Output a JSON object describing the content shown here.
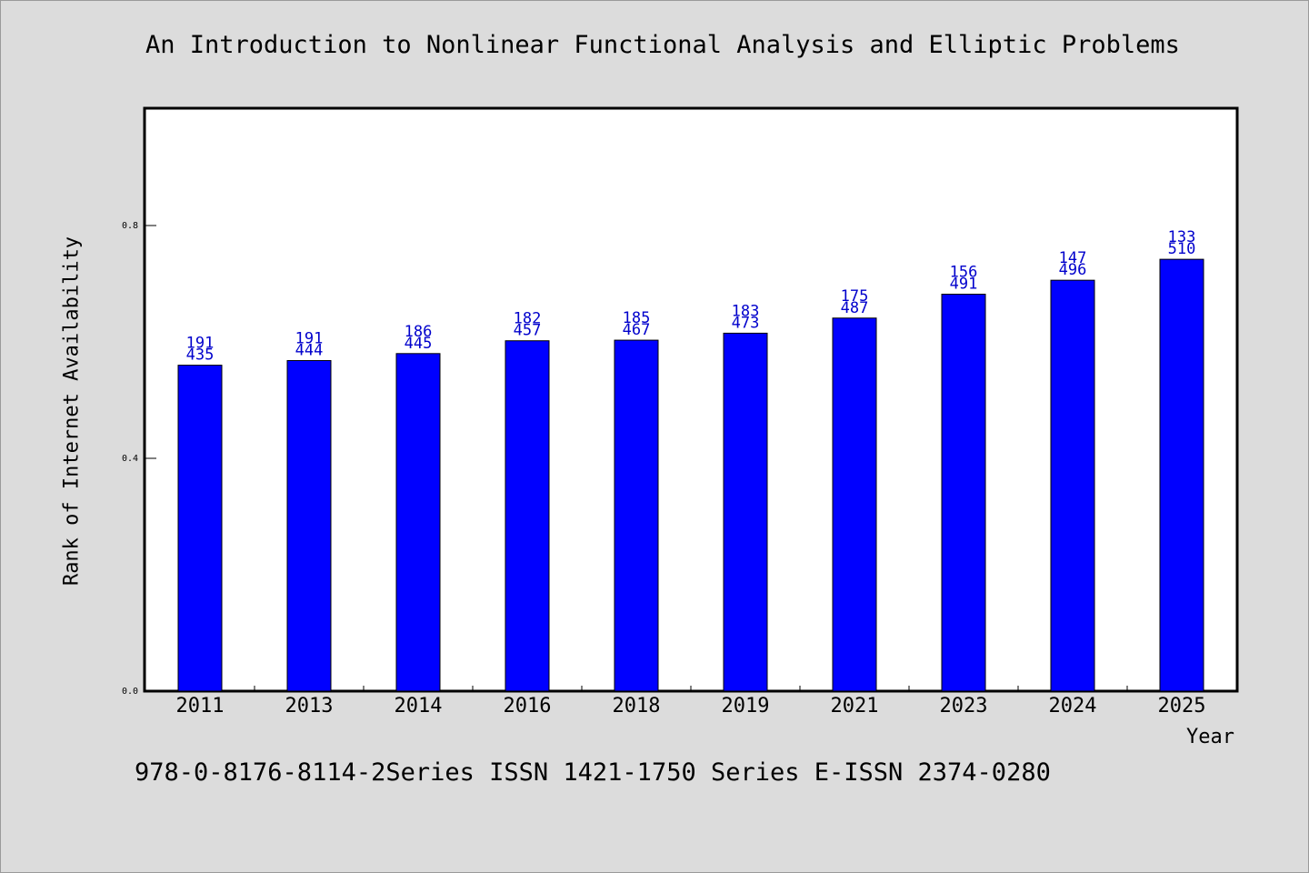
{
  "chart_data": {
    "type": "bar",
    "title": "An Introduction to Nonlinear Functional Analysis and Elliptic Problems",
    "xlabel": "Year",
    "ylabel": "Rank of Internet Availability",
    "categories": [
      "2011",
      "2013",
      "2014",
      "2016",
      "2018",
      "2019",
      "2021",
      "2023",
      "2024",
      "2025"
    ],
    "values": [
      0.56,
      0.568,
      0.58,
      0.602,
      0.603,
      0.615,
      0.641,
      0.682,
      0.706,
      0.742
    ],
    "data_labels": [
      [
        "191",
        "435"
      ],
      [
        "191",
        "444"
      ],
      [
        "186",
        "445"
      ],
      [
        "182",
        "457"
      ],
      [
        "185",
        "467"
      ],
      [
        "183",
        "473"
      ],
      [
        "175",
        "487"
      ],
      [
        "156",
        "491"
      ],
      [
        "147",
        "496"
      ],
      [
        "133",
        "510"
      ]
    ],
    "yticks": [
      "0.0",
      "0.4",
      "0.8"
    ],
    "ylim": [
      0,
      1.0
    ],
    "grid": false,
    "bar_color": "#0000ff",
    "label_color": "#0000cc"
  },
  "footer": "978-0-8176-8114-2Series ISSN 1421-1750 Series E-ISSN 2374-0280"
}
